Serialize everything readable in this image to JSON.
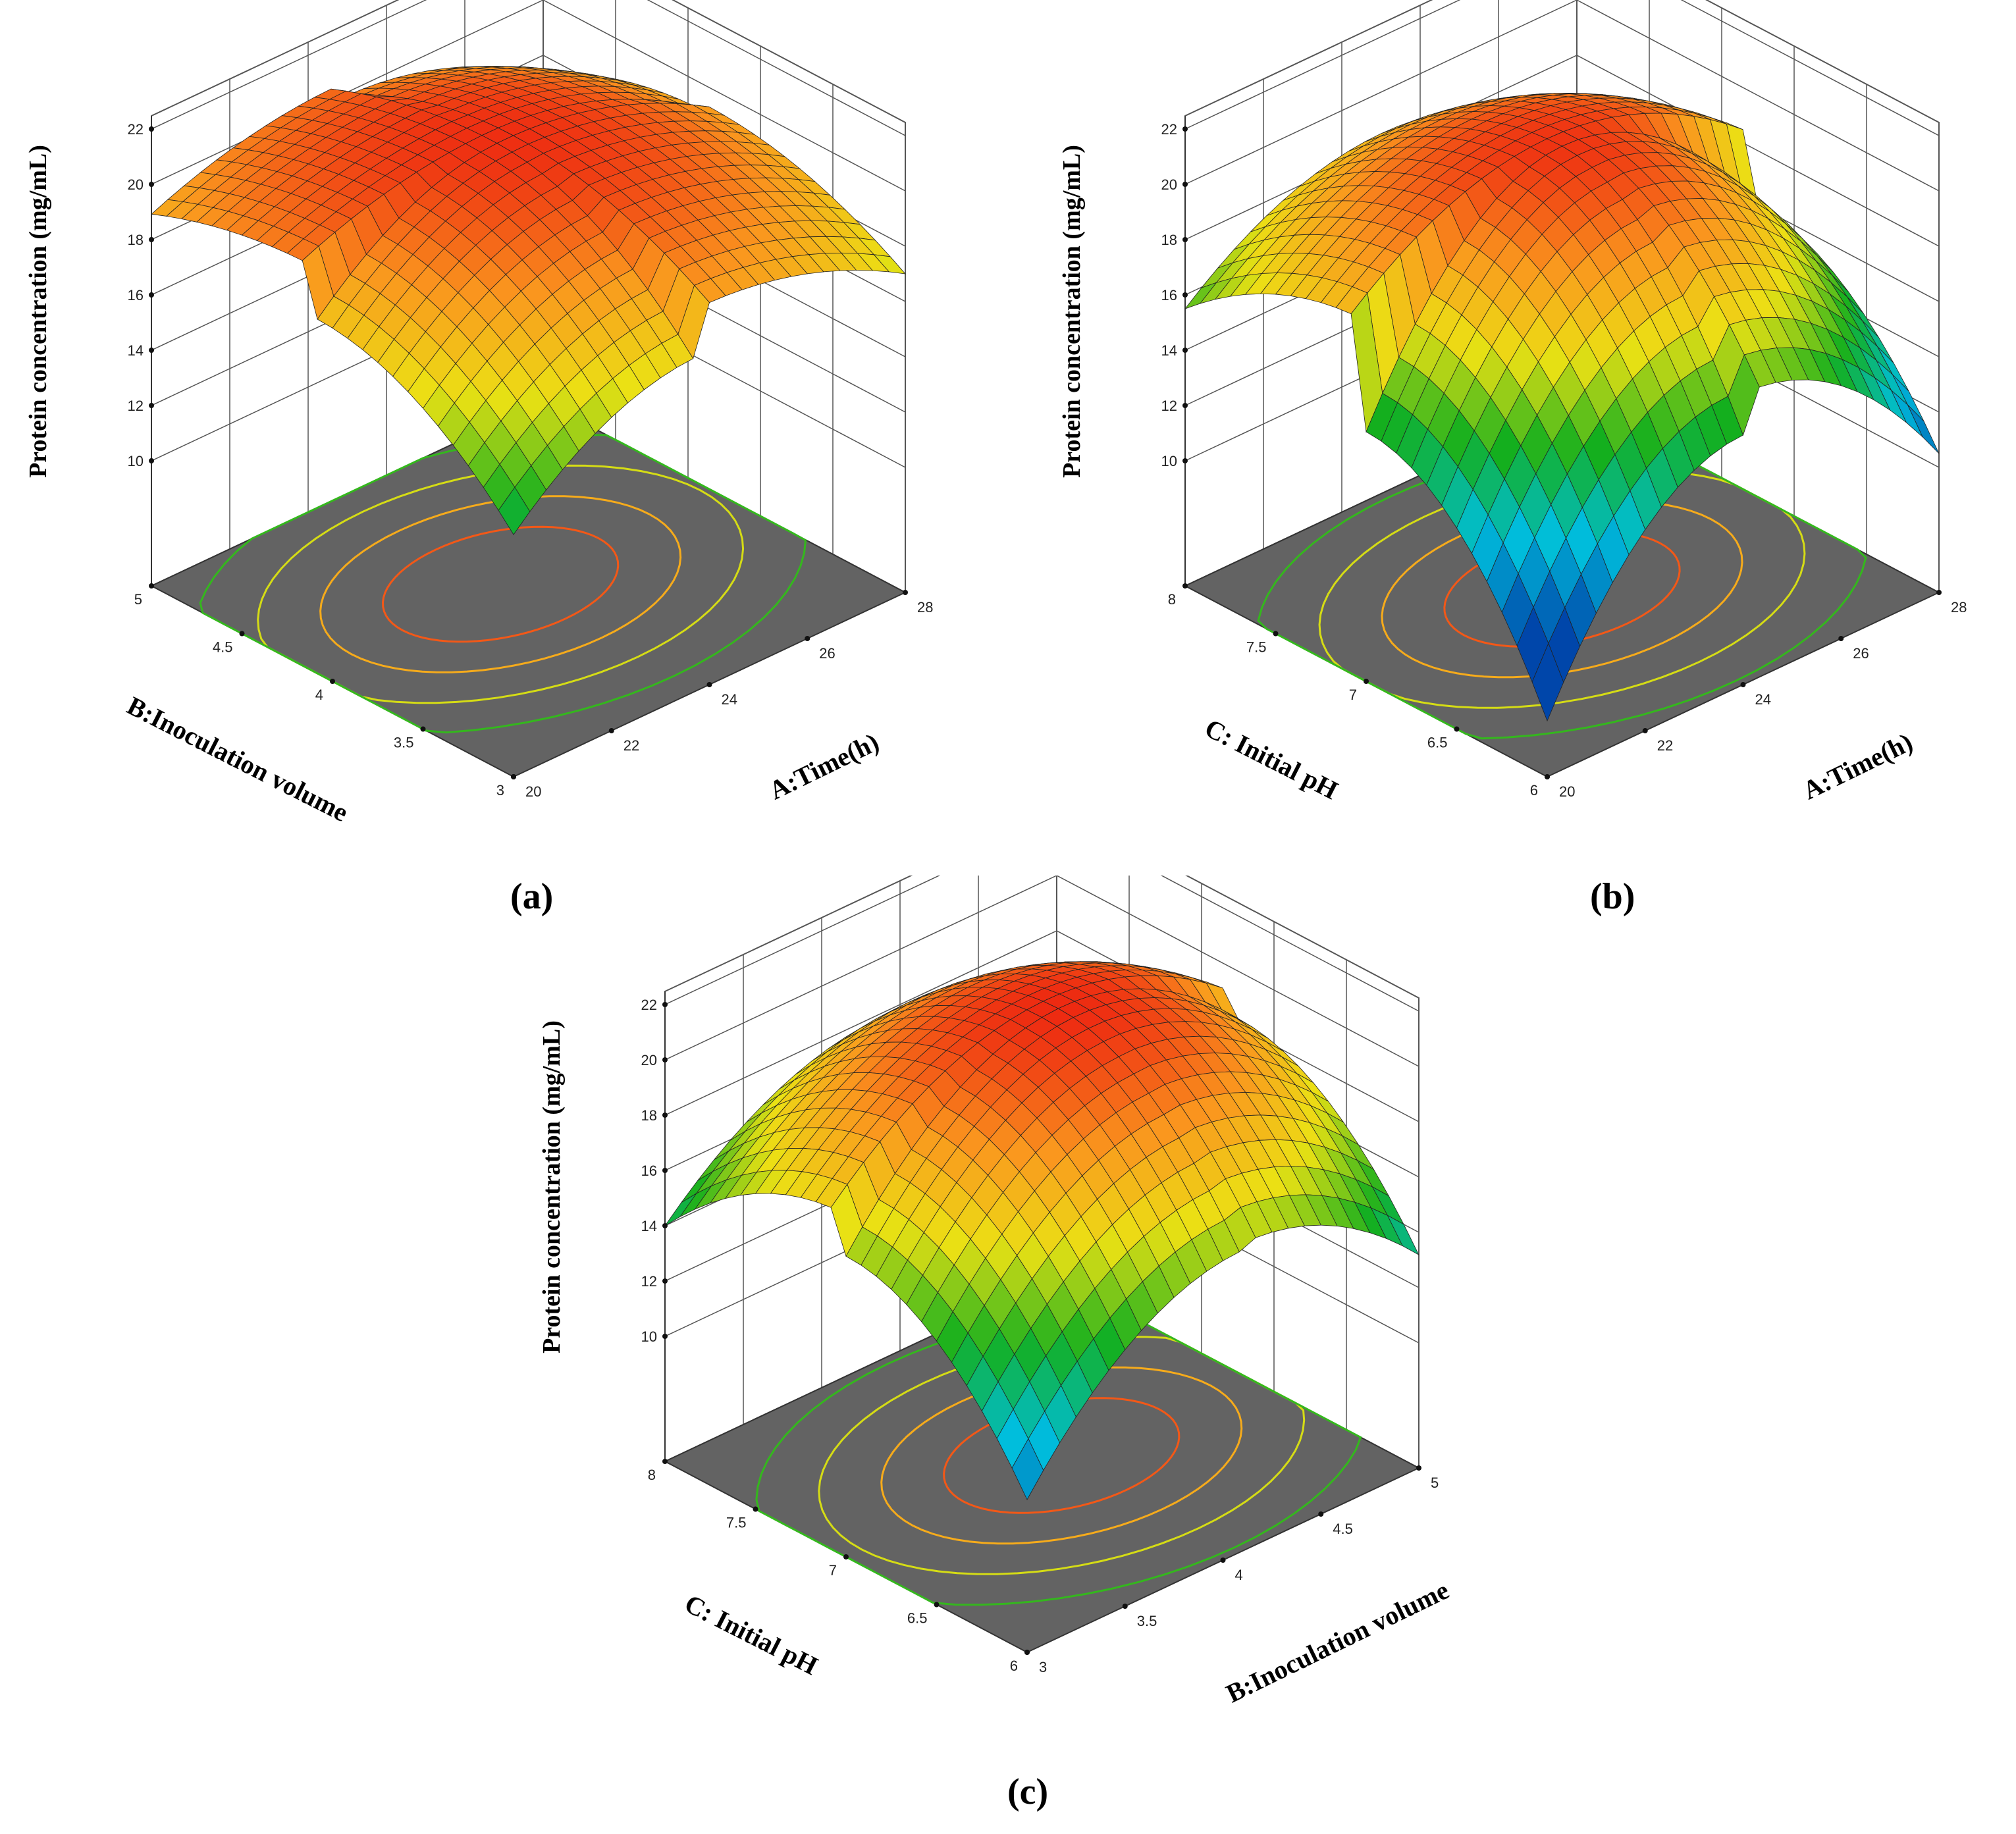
{
  "chart_data": [
    {
      "panel_label": "(a)",
      "type": "surface3d",
      "x_axis": {
        "label": "A:Time(h)",
        "range": [
          20,
          28
        ],
        "ticks": [
          "20",
          "22",
          "24",
          "26",
          "28"
        ]
      },
      "y_axis": {
        "label": "B:Inoculation volume",
        "range": [
          3,
          5
        ],
        "ticks": [
          "3",
          "3.5",
          "4",
          "4.5",
          "5"
        ]
      },
      "z_axis": {
        "label": "Protein concentration (mg/mL)",
        "range": [
          10,
          22
        ],
        "ticks": [
          "10",
          "12",
          "14",
          "16",
          "18",
          "20",
          "22"
        ]
      },
      "surface": {
        "peak": 21.6,
        "x_opt": 23.8,
        "y_opt": 4.1,
        "corners": {
          "x_min_y_min": 13.5,
          "x_max_y_max": 16.5,
          "x_min_y_max": 18.0,
          "x_max_y_min": 17.0
        }
      },
      "contour_floor": true
    },
    {
      "panel_label": "(b)",
      "type": "surface3d",
      "x_axis": {
        "label": "A:Time(h)",
        "range": [
          20,
          28
        ],
        "ticks": [
          "20",
          "22",
          "24",
          "26",
          "28"
        ]
      },
      "y_axis": {
        "label": "C: Initial pH",
        "range": [
          6,
          8
        ],
        "ticks": [
          "6",
          "6.5",
          "7",
          "7.5",
          "8"
        ]
      },
      "z_axis": {
        "label": "Protein concentration (mg/mL)",
        "range": [
          10,
          22
        ],
        "ticks": [
          "10",
          "12",
          "14",
          "16",
          "18",
          "20",
          "22"
        ]
      },
      "surface": {
        "peak": 21.5,
        "x_opt": 24.0,
        "y_opt": 7.0,
        "corners": {
          "x_min_y_min": 7.5,
          "x_max_y_max": 15.5,
          "x_min_y_max": 15.5,
          "x_max_y_min": 10.5
        }
      },
      "contour_floor": true
    },
    {
      "panel_label": "(c)",
      "type": "surface3d",
      "x_axis": {
        "label": "B:Inoculation volume",
        "range": [
          3,
          5
        ],
        "ticks": [
          "3",
          "3.5",
          "4",
          "4.5",
          "5"
        ]
      },
      "y_axis": {
        "label": "C: Initial pH",
        "range": [
          6,
          8
        ],
        "ticks": [
          "6",
          "6.5",
          "7",
          "7.5",
          "8"
        ]
      },
      "z_axis": {
        "label": "Protein concentration (mg/mL)",
        "range": [
          10,
          22
        ],
        "ticks": [
          "10",
          "12",
          "14",
          "16",
          "18",
          "20",
          "22"
        ]
      },
      "surface": {
        "peak": 21.7,
        "x_opt": 4.1,
        "y_opt": 7.0,
        "corners": {
          "x_min_y_min": 11.0,
          "x_max_y_max": 14.0,
          "x_min_y_max": 14.0,
          "x_max_y_min": 11.5
        }
      },
      "contour_floor": true
    }
  ]
}
